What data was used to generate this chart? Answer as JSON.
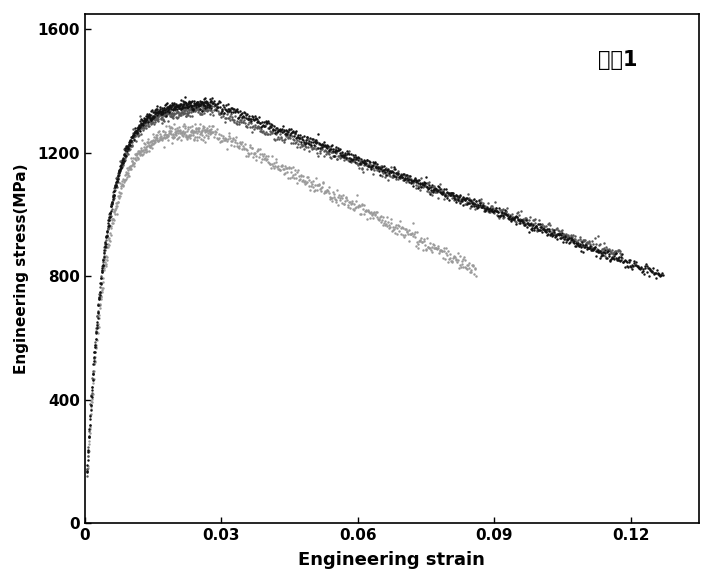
{
  "xlabel": "Engineering strain",
  "ylabel": "Engineering stress(MPa)",
  "annotation": "实例1",
  "xlim": [
    0,
    0.135
  ],
  "ylim": [
    0,
    1650
  ],
  "xticks": [
    0,
    0.03,
    0.06,
    0.09,
    0.12
  ],
  "yticks": [
    0,
    400,
    800,
    1200,
    1600
  ],
  "background_color": "#ffffff",
  "curve_black_color": "#111111",
  "curve_dark_gray_color": "#555555",
  "curve_light_gray_color": "#999999",
  "markersize": 1.5,
  "n_points_rise": 300,
  "n_points_fall": 600
}
